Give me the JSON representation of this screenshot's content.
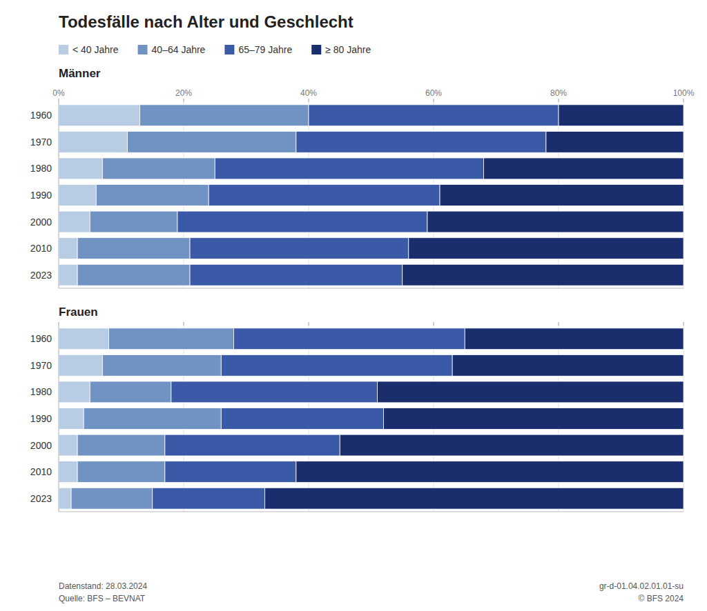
{
  "chart_data": [
    {
      "type": "bar",
      "orientation": "horizontal",
      "stacked": true,
      "title": "Todesfälle nach Alter und Geschlecht",
      "subtitle": "Männer",
      "categories": [
        "1960",
        "1970",
        "1980",
        "1990",
        "2000",
        "2010",
        "2023"
      ],
      "series": [
        {
          "name": "< 40 Jahre",
          "color": "#b8cce4",
          "values": [
            13.0,
            11.0,
            7.0,
            6.0,
            5.0,
            3.0,
            3.0
          ]
        },
        {
          "name": "40–64 Jahre",
          "color": "#7093c4",
          "values": [
            27.0,
            27.0,
            18.0,
            18.0,
            14.0,
            18.0,
            18.0
          ]
        },
        {
          "name": "65–79 Jahre",
          "color": "#3a5aa8",
          "values": [
            40.0,
            40.0,
            43.0,
            37.0,
            40.0,
            35.0,
            34.0
          ]
        },
        {
          "name": "≥ 80 Jahre",
          "color": "#1a2e6e",
          "values": [
            20.0,
            22.0,
            32.0,
            39.0,
            41.0,
            44.0,
            45.0
          ]
        }
      ],
      "xlim": [
        0,
        100
      ],
      "xticks": [
        {
          "value": 0,
          "label": "0%"
        },
        {
          "value": 20,
          "label": "20%"
        },
        {
          "value": 40,
          "label": "40%"
        },
        {
          "value": 60,
          "label": "60%"
        },
        {
          "value": 80,
          "label": "80%"
        },
        {
          "value": 100,
          "label": "100%"
        }
      ],
      "grid": true,
      "legend": "top"
    },
    {
      "type": "bar",
      "orientation": "horizontal",
      "stacked": true,
      "subtitle": "Frauen",
      "categories": [
        "1960",
        "1970",
        "1980",
        "1990",
        "2000",
        "2010",
        "2023"
      ],
      "series": [
        {
          "color": "#b8cce4",
          "values": [
            8.0,
            7.0,
            5.0,
            4.0,
            3.0,
            3.0,
            2.0
          ]
        },
        {
          "color": "#7093c4",
          "values": [
            20.0,
            19.0,
            13.0,
            22.0,
            14.0,
            14.0,
            13.0
          ]
        },
        {
          "color": "#3a5aa8",
          "values": [
            37.0,
            37.0,
            33.0,
            26.0,
            28.0,
            21.0,
            18.0
          ]
        },
        {
          "color": "#1a2e6e",
          "values": [
            35.0,
            37.0,
            49.0,
            48.0,
            55.0,
            62.0,
            67.0
          ]
        }
      ],
      "xlim": [
        0,
        100
      ],
      "xticks": [
        0,
        20,
        40,
        60,
        80,
        100
      ],
      "grid": true,
      "tick_labels": "y",
      "annotations": [
        "Datenstand: 28.03.2024\nQuelle: BFS – BEVNAT",
        "gr-d-01.04.02.01.01-su\n© BFS 2024"
      ]
    }
  ]
}
